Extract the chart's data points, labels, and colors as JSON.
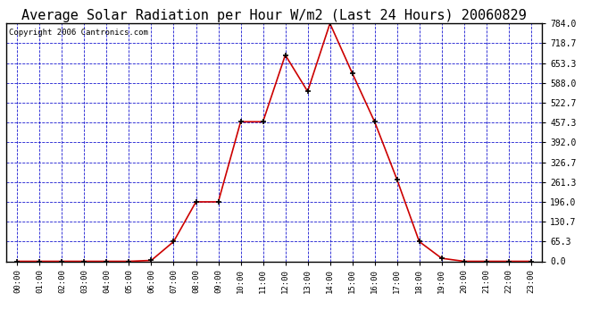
{
  "title": "Average Solar Radiation per Hour W/m2 (Last 24 Hours) 20060829",
  "copyright": "Copyright 2006 Cantronics.com",
  "hours": [
    0,
    1,
    2,
    3,
    4,
    5,
    6,
    7,
    8,
    9,
    10,
    11,
    12,
    13,
    14,
    15,
    16,
    17,
    18,
    19,
    20,
    21,
    22,
    23
  ],
  "hour_labels": [
    "00:00",
    "01:00",
    "02:00",
    "03:00",
    "04:00",
    "05:00",
    "06:00",
    "07:00",
    "08:00",
    "09:00",
    "10:00",
    "11:00",
    "12:00",
    "13:00",
    "14:00",
    "15:00",
    "16:00",
    "17:00",
    "18:00",
    "19:00",
    "20:00",
    "21:00",
    "22:00",
    "23:00"
  ],
  "values": [
    0,
    0,
    0,
    0,
    0,
    0,
    3,
    65,
    196,
    196,
    460,
    460,
    680,
    560,
    784,
    620,
    460,
    270,
    65,
    10,
    0,
    0,
    0,
    0
  ],
  "y_ticks": [
    0.0,
    65.3,
    130.7,
    196.0,
    261.3,
    326.7,
    392.0,
    457.3,
    522.7,
    588.0,
    653.3,
    718.7,
    784.0
  ],
  "ymax": 784.0,
  "line_color": "#cc0000",
  "marker_color": "#000000",
  "grid_color": "#0000cc",
  "bg_color": "#ffffff",
  "plot_bg_color": "#ffffff",
  "title_fontsize": 11,
  "copyright_fontsize": 6.5
}
